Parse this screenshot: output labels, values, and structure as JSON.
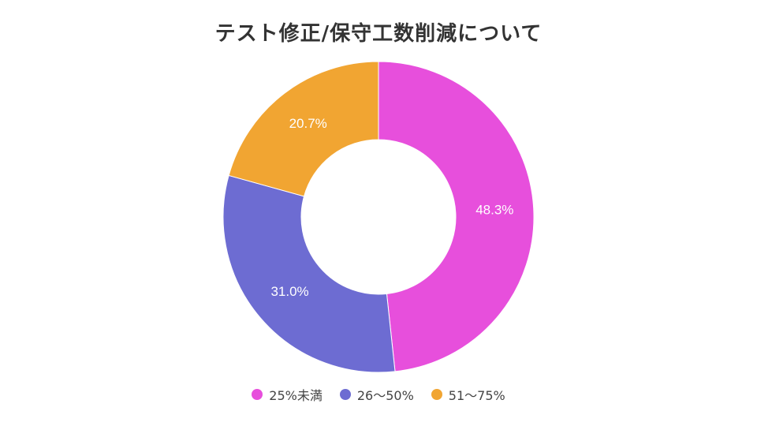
{
  "chart_data": {
    "type": "pie",
    "variant": "donut",
    "title": "テスト修正/保守工数削減について",
    "categories": [
      "25%未満",
      "26〜50%",
      "51〜75%"
    ],
    "values": [
      48.3,
      31.0,
      20.7
    ],
    "data_labels": [
      "48.3%",
      "31.0%",
      "20.7%"
    ],
    "colors": [
      "#e74fdc",
      "#6d6cd2",
      "#f1a532"
    ],
    "legend_position": "bottom"
  }
}
